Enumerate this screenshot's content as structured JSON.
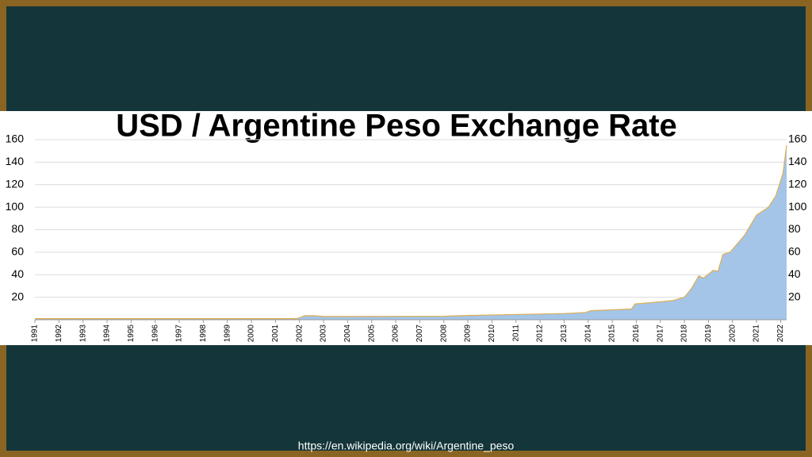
{
  "chart_data": {
    "type": "area",
    "title": "USD / Argentine Peso Exchange Rate",
    "source": "https://en.wikipedia.org/wiki/Argentine_peso",
    "x": [
      1991,
      2001.9,
      2002.2,
      2002.6,
      2003,
      2008,
      2009,
      2013,
      2013.9,
      2014.1,
      2015.8,
      2015.95,
      2016.5,
      2017.5,
      2018,
      2018.3,
      2018.6,
      2018.8,
      2019.2,
      2019.4,
      2019.6,
      2019.9,
      2020.5,
      2021,
      2021.5,
      2021.8,
      2022.1,
      2022.25
    ],
    "values": [
      1,
      1,
      3.5,
      3.6,
      2.9,
      3.1,
      3.8,
      5.5,
      6.5,
      8,
      9.5,
      14,
      15,
      17,
      20,
      28,
      39,
      37,
      44,
      43,
      58,
      60,
      75,
      93,
      100,
      110,
      130,
      155
    ],
    "color": "#a4c5e8",
    "line_color": "#dcae52",
    "xlim": [
      1991,
      2022.25
    ],
    "xticks": [
      1991,
      1992,
      1993,
      1994,
      1995,
      1996,
      1997,
      1998,
      1999,
      2000,
      2001,
      2002,
      2003,
      2004,
      2005,
      2006,
      2007,
      2008,
      2009,
      2010,
      2011,
      2012,
      2013,
      2014,
      2015,
      2016,
      2017,
      2018,
      2019,
      2020,
      2021,
      2022
    ],
    "ylim": [
      0,
      160
    ],
    "yticks": [
      20,
      40,
      60,
      80,
      100,
      120,
      140,
      160
    ],
    "grid": true
  }
}
